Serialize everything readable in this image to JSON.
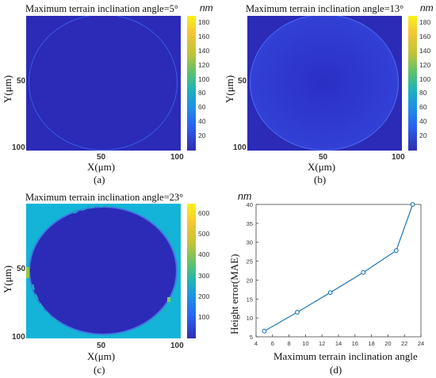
{
  "chart_data": [
    {
      "type": "heatmap",
      "title": "Maximum terrain inclination angle=5°",
      "xlabel": "X(μm)",
      "ylabel": "Y(μm)",
      "x_ticks": [
        "50",
        "100"
      ],
      "y_ticks": [
        "50",
        "100"
      ],
      "colorbar": {
        "unit": "nm",
        "ticks": [
          "180",
          "160",
          "140",
          "120",
          "100",
          "80",
          "60",
          "40",
          "20"
        ],
        "range": [
          0,
          190
        ]
      },
      "subfig_label": "(a)"
    },
    {
      "type": "heatmap",
      "title": "Maximum terrain inclination angle=13°",
      "xlabel": "X(μm)",
      "ylabel": "Y(μm)",
      "x_ticks": [
        "50",
        "100"
      ],
      "y_ticks": [
        "50",
        "100"
      ],
      "colorbar": {
        "unit": "nm",
        "ticks": [
          "180",
          "160",
          "140",
          "120",
          "100",
          "80",
          "60",
          "40",
          "20"
        ],
        "range": [
          0,
          190
        ]
      },
      "subfig_label": "(b)"
    },
    {
      "type": "heatmap",
      "title": "Maximum terrain inclination angle=23°",
      "xlabel": "X(μm)",
      "ylabel": "Y(μm)",
      "x_ticks": [
        "50",
        "100"
      ],
      "y_ticks": [
        "50",
        "100"
      ],
      "colorbar": {
        "unit": "",
        "ticks": [
          "600",
          "500",
          "400",
          "300",
          "200",
          "100"
        ],
        "range": [
          0,
          650
        ]
      },
      "subfig_label": "(c)"
    },
    {
      "type": "line",
      "title": "",
      "xlabel": "Maximum terrain inclination angle",
      "ylabel": "Height error(MAE)",
      "yunit": "nm",
      "x": [
        5,
        9,
        13,
        17,
        21,
        23
      ],
      "series": [
        {
          "values": [
            6.5,
            11.5,
            16.7,
            22,
            27.8,
            40
          ]
        }
      ],
      "xlim": [
        4,
        24
      ],
      "ylim": [
        5,
        40
      ],
      "x_ticks": [
        4,
        6,
        8,
        10,
        12,
        14,
        16,
        18,
        20,
        22,
        24
      ],
      "y_ticks": [
        5,
        10,
        15,
        20,
        25,
        30,
        35,
        40
      ],
      "color": "#1f77b4",
      "subfig_label": "(d)"
    }
  ],
  "colors": {
    "plot_bg": "#2b2bb8",
    "outer_c": "#13b4d8"
  }
}
